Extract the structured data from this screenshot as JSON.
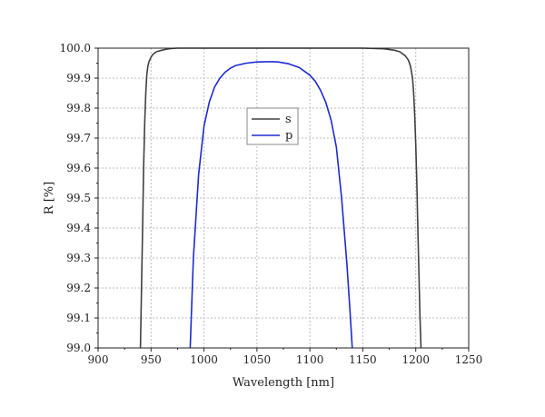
{
  "chart_data": {
    "type": "line",
    "title": "",
    "xlabel": "Wavelength [nm]",
    "ylabel": "R [%]",
    "xlim": [
      900,
      1250
    ],
    "ylim": [
      99.0,
      100.0
    ],
    "xticks": [
      900,
      950,
      1000,
      1050,
      1100,
      1150,
      1200,
      1250
    ],
    "yticks": [
      "99.0",
      "99.1",
      "99.2",
      "99.3",
      "99.4",
      "99.5",
      "99.6",
      "99.7",
      "99.8",
      "99.9",
      "100.0"
    ],
    "grid": true,
    "legend_position": "center",
    "series": [
      {
        "name": "s",
        "color": "#404040",
        "x": [
          940,
          941,
          942,
          943,
          944,
          945,
          946,
          947,
          948,
          950,
          952,
          955,
          960,
          965,
          970,
          975,
          980,
          1000,
          1050,
          1100,
          1150,
          1170,
          1180,
          1185,
          1190,
          1193,
          1195,
          1197,
          1198,
          1199,
          1200,
          1201,
          1202,
          1203,
          1204,
          1205
        ],
        "y": [
          99.0,
          99.2,
          99.4,
          99.6,
          99.75,
          99.85,
          99.91,
          99.94,
          99.955,
          99.97,
          99.98,
          99.988,
          99.993,
          99.997,
          99.999,
          100.0,
          100.0,
          100.0,
          100.0,
          100.0,
          100.0,
          99.998,
          99.993,
          99.988,
          99.975,
          99.96,
          99.94,
          99.9,
          99.85,
          99.78,
          99.68,
          99.55,
          99.4,
          99.25,
          99.1,
          99.0
        ]
      },
      {
        "name": "p",
        "color": "#1f2ad1",
        "x": [
          987,
          990,
          995,
          1000,
          1005,
          1010,
          1015,
          1020,
          1025,
          1030,
          1040,
          1050,
          1060,
          1065,
          1070,
          1080,
          1090,
          1100,
          1105,
          1110,
          1115,
          1120,
          1125,
          1130,
          1135,
          1138,
          1140
        ],
        "y": [
          99.0,
          99.3,
          99.58,
          99.74,
          99.82,
          99.87,
          99.9,
          99.92,
          99.933,
          99.942,
          99.95,
          99.954,
          99.955,
          99.955,
          99.954,
          99.948,
          99.935,
          99.91,
          99.89,
          99.86,
          99.82,
          99.76,
          99.67,
          99.5,
          99.28,
          99.12,
          99.0
        ]
      }
    ]
  }
}
